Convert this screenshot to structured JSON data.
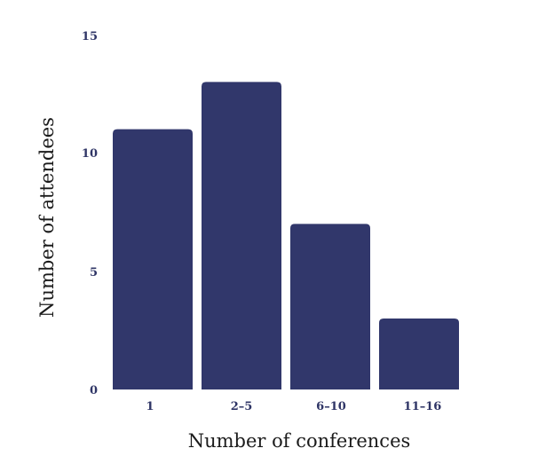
{
  "chart_data": {
    "type": "bar",
    "title": "",
    "xlabel": "Number of conferences",
    "ylabel": "Number of attendees",
    "categories": [
      "1",
      "2–5",
      "6–10",
      "11–16"
    ],
    "values": [
      11,
      13,
      7,
      3
    ],
    "ylim": [
      0,
      15
    ],
    "yticks": [
      "0",
      "5",
      "10",
      "15"
    ],
    "grid": false,
    "legend": "none",
    "bar_color": "#31376b"
  }
}
